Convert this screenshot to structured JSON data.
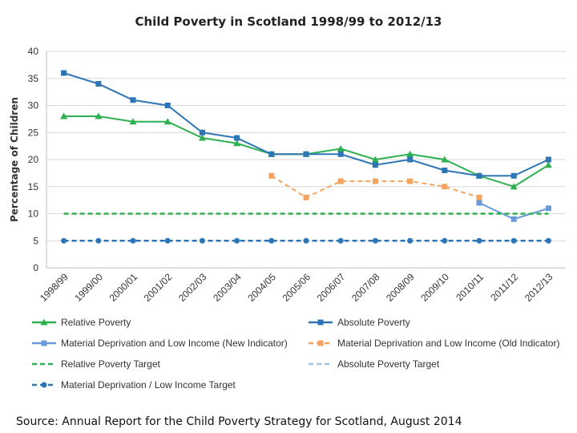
{
  "chart_data": {
    "type": "line",
    "title": "Child Poverty in Scotland 1998/99 to 2012/13",
    "ylabel": "Percentage of Children",
    "xlabel": "",
    "ylim": [
      0,
      40
    ],
    "yticks": [
      0,
      5,
      10,
      15,
      20,
      25,
      30,
      35,
      40
    ],
    "grid": true,
    "legend_position": "bottom",
    "categories": [
      "1998/99",
      "1999/00",
      "2000/01",
      "2001/02",
      "2002/03",
      "2003/04",
      "2004/05",
      "2005/06",
      "2006/07",
      "2007/08",
      "2008/09",
      "2009/10",
      "2010/11",
      "2011/12",
      "2012/13"
    ],
    "series": [
      {
        "name": "Relative Poverty",
        "color": "#2eb050",
        "dash": "solid",
        "marker": "triangle",
        "values": [
          28,
          28,
          27,
          27,
          24,
          23,
          21,
          21,
          22,
          20,
          21,
          20,
          17,
          15,
          19
        ]
      },
      {
        "name": "Absolute Poverty",
        "color": "#2e75b6",
        "dash": "solid",
        "marker": "square",
        "values": [
          36,
          34,
          31,
          30,
          25,
          24,
          21,
          21,
          21,
          19,
          20,
          18,
          17,
          17,
          20
        ]
      },
      {
        "name": "Material Deprivation and Low Income (New Indicator)",
        "color": "#6a9bd8",
        "dash": "solid",
        "marker": "square",
        "values": [
          null,
          null,
          null,
          null,
          null,
          null,
          null,
          null,
          null,
          null,
          null,
          null,
          12,
          9,
          11
        ]
      },
      {
        "name": "Material Deprivation and Low Income (Old Indicator)",
        "color": "#f4a460",
        "dash": "dashed",
        "marker": "square",
        "values": [
          null,
          null,
          null,
          null,
          null,
          null,
          17,
          13,
          16,
          16,
          16,
          15,
          13,
          null,
          null
        ]
      },
      {
        "name": "Relative Poverty Target",
        "color": "#2eb050",
        "dash": "dashed",
        "marker": "none",
        "values": [
          10,
          10,
          10,
          10,
          10,
          10,
          10,
          10,
          10,
          10,
          10,
          10,
          10,
          10,
          10
        ]
      },
      {
        "name": "Absolute Poverty Target",
        "color": "#9dc3e6",
        "dash": "dashed",
        "marker": "none",
        "values": [
          null,
          null,
          null,
          null,
          null,
          null,
          null,
          null,
          null,
          null,
          null,
          null,
          null,
          null,
          null
        ]
      },
      {
        "name": "Material Deprivation / Low Income Target",
        "color": "#2e75b6",
        "dash": "dashed",
        "marker": "circle",
        "values": [
          5,
          5,
          5,
          5,
          5,
          5,
          5,
          5,
          5,
          5,
          5,
          5,
          5,
          5,
          5
        ]
      }
    ]
  },
  "source": "Source: Annual Report for the Child Poverty Strategy for Scotland, August 2014"
}
